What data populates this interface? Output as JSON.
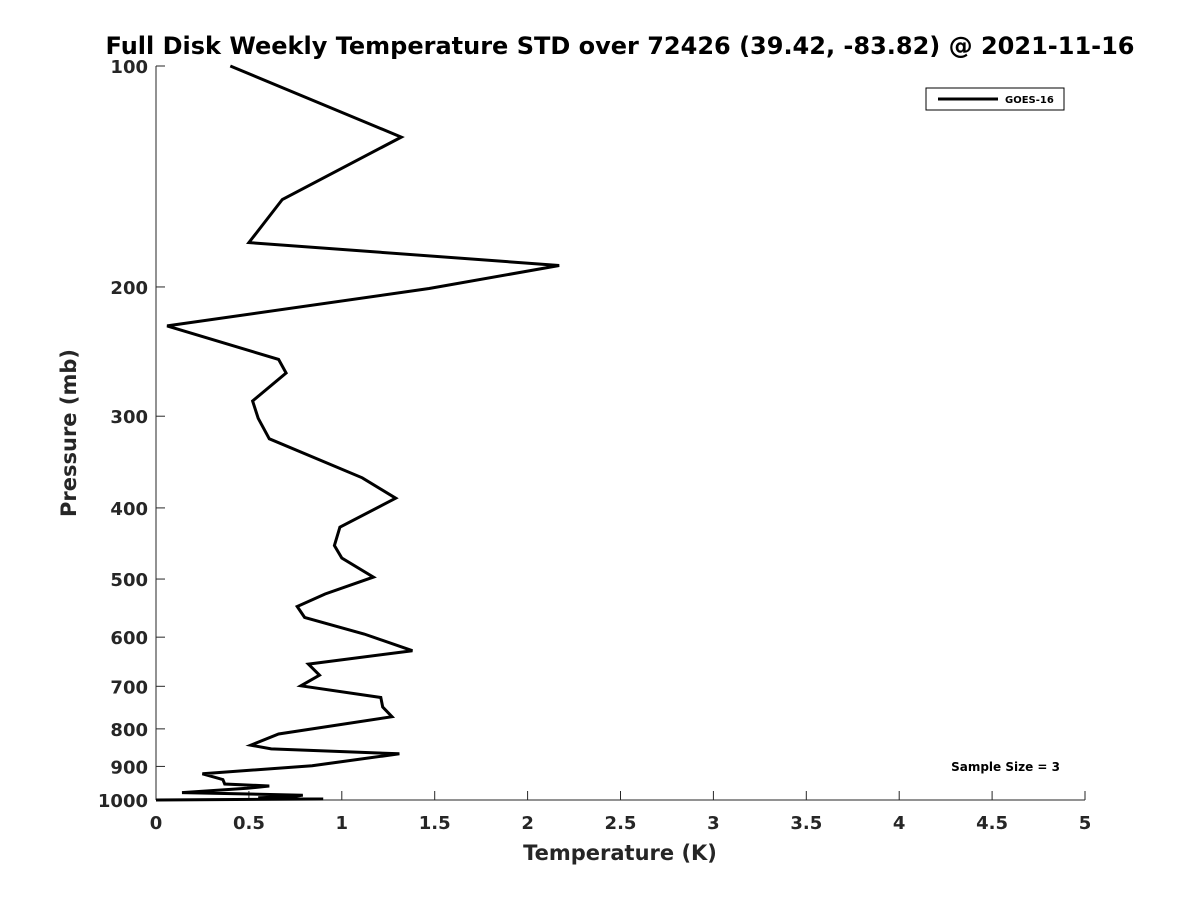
{
  "chart_data": {
    "type": "line",
    "title": "Full Disk Weekly Temperature STD over 72426 (39.42, -83.82) @ 2021-11-16",
    "xlabel": "Temperature (K)",
    "ylabel": "Pressure (mb)",
    "xlim": [
      0,
      5
    ],
    "ylim": [
      100,
      1000
    ],
    "y_scale": "log",
    "y_reversed": true,
    "x_ticks": [
      0,
      0.5,
      1,
      1.5,
      2,
      2.5,
      3,
      3.5,
      4,
      4.5,
      5
    ],
    "x_tick_labels": [
      "0",
      "0.5",
      "1",
      "1.5",
      "2",
      "2.5",
      "3",
      "3.5",
      "4",
      "4.5",
      "5"
    ],
    "y_ticks": [
      100,
      200,
      300,
      400,
      500,
      600,
      700,
      800,
      900,
      1000
    ],
    "y_tick_labels": [
      "100",
      "200",
      "300",
      "400",
      "500",
      "600",
      "700",
      "800",
      "900",
      "1000"
    ],
    "grid": false,
    "legend_position": "top-right",
    "annotation": "Sample Size = 3",
    "series": [
      {
        "name": "GOES-16",
        "color": "#000000",
        "points": [
          [
            0.4,
            100
          ],
          [
            1.32,
            125
          ],
          [
            0.68,
            152
          ],
          [
            0.5,
            174
          ],
          [
            2.17,
            187
          ],
          [
            1.47,
            201
          ],
          [
            0.06,
            226
          ],
          [
            0.66,
            251
          ],
          [
            0.7,
            262
          ],
          [
            0.52,
            286
          ],
          [
            0.55,
            302
          ],
          [
            0.61,
            322
          ],
          [
            1.11,
            364
          ],
          [
            1.29,
            388
          ],
          [
            0.99,
            425
          ],
          [
            0.96,
            450
          ],
          [
            1.0,
            468
          ],
          [
            1.17,
            497
          ],
          [
            0.91,
            524
          ],
          [
            0.76,
            545
          ],
          [
            0.8,
            564
          ],
          [
            1.12,
            594
          ],
          [
            1.38,
            626
          ],
          [
            0.82,
            653
          ],
          [
            0.88,
            676
          ],
          [
            0.78,
            699
          ],
          [
            1.21,
            725
          ],
          [
            1.22,
            747
          ],
          [
            1.27,
            770
          ],
          [
            0.66,
            813
          ],
          [
            0.51,
            842
          ],
          [
            0.62,
            852
          ],
          [
            1.31,
            865
          ],
          [
            0.84,
            898
          ],
          [
            0.25,
            921
          ],
          [
            0.36,
            938
          ],
          [
            0.37,
            951
          ],
          [
            0.61,
            957
          ],
          [
            0.49,
            964
          ],
          [
            0.14,
            977
          ],
          [
            0.79,
            985
          ],
          [
            0.73,
            990
          ],
          [
            0.55,
            993
          ],
          [
            0.9,
            997
          ],
          [
            0.0,
            1000
          ]
        ]
      }
    ]
  }
}
